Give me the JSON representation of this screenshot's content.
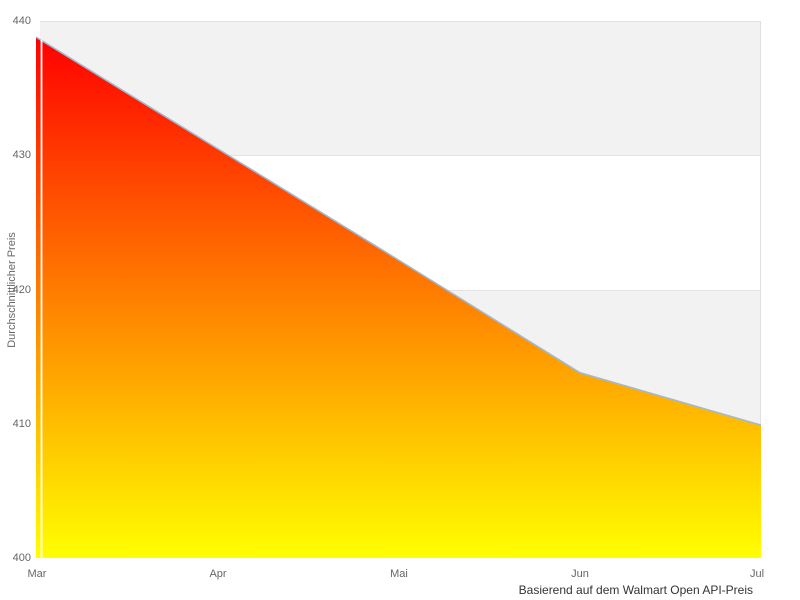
{
  "chart_data": {
    "type": "area",
    "categories": [
      "Mar",
      "Apr",
      "Mai",
      "Jun",
      "Jul"
    ],
    "values": [
      438.8,
      430.5,
      422.2,
      413.8,
      409.9
    ],
    "ylabel": "Durchschnittlicher Preis",
    "xlabel": "",
    "caption": "Basierend auf dem Walmart Open API-Preis",
    "ylim": [
      400,
      440
    ],
    "yticks": [
      440,
      430,
      420,
      410,
      400
    ],
    "ytick_labels": [
      "440",
      "430",
      "420",
      "410",
      "400"
    ],
    "grid": "alternating horizontal bands, no vertical gridlines",
    "legend": "none",
    "colors": {
      "band_gray": "#f2f2f2",
      "band_border": "#e3e3e3",
      "plot_border": "#e0e0e0",
      "line": "#a0b9d3",
      "fill_gradient_top": "#ff0000",
      "fill_gradient_bottom": "#ffff00",
      "tick_text": "#666666",
      "caption_text": "#333333",
      "axis_line_overlay": "#ffffff"
    }
  }
}
